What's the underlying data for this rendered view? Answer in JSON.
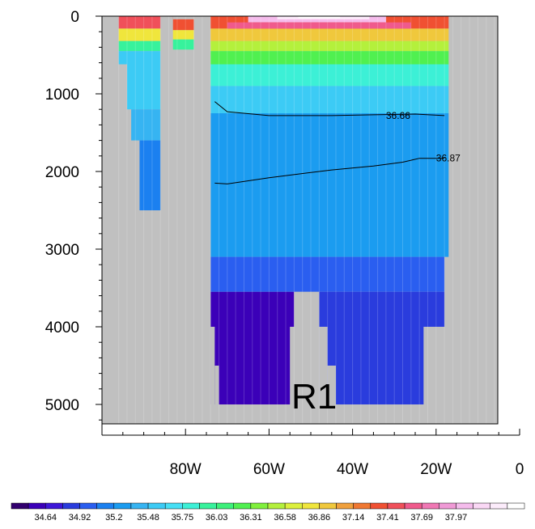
{
  "chart_data": {
    "type": "heatmap",
    "title": "",
    "xlabel": "",
    "ylabel": "",
    "panel_label": "R1",
    "x_axis": {
      "range": [
        -100,
        0
      ],
      "reversed_labels": true,
      "ticks": [
        {
          "value": -80,
          "label": "80W"
        },
        {
          "value": -60,
          "label": "60W"
        },
        {
          "value": -40,
          "label": "40W"
        },
        {
          "value": -20,
          "label": "20W"
        },
        {
          "value": 0,
          "label": "0"
        }
      ]
    },
    "y_axis": {
      "range": [
        0,
        5400
      ],
      "inverted": true,
      "ticks": [
        {
          "value": 0,
          "label": "0"
        },
        {
          "value": 1000,
          "label": "1000"
        },
        {
          "value": 2000,
          "label": "2000"
        },
        {
          "value": 3000,
          "label": "3000"
        },
        {
          "value": 4000,
          "label": "4000"
        },
        {
          "value": 5000,
          "label": "5000"
        }
      ]
    },
    "land_color": "#c0c0c0",
    "colorbar": {
      "colors": [
        "#32006e",
        "#3b00b8",
        "#3e17d8",
        "#2a3cdd",
        "#2a5ef0",
        "#1b80f0",
        "#1b9cf0",
        "#36b4f2",
        "#3ccbf5",
        "#46dff5",
        "#3cf0d6",
        "#37f29c",
        "#3cf07a",
        "#50f050",
        "#80f03c",
        "#b4f03c",
        "#dcf03c",
        "#f0e63c",
        "#f0c83c",
        "#f0a03c",
        "#f07832",
        "#f05032",
        "#f0505a",
        "#f05a8c",
        "#f078b4",
        "#f09ad6",
        "#f5bcec",
        "#fad8f5",
        "#fcecfb",
        "#ffffff"
      ],
      "labels": [
        "34.64",
        "34.92",
        "35.2",
        "35.48",
        "35.75",
        "36.03",
        "36.31",
        "36.58",
        "36.86",
        "37.14",
        "37.41",
        "37.69",
        "37.97"
      ]
    },
    "cells": [
      {
        "x0": -96,
        "x1": -86,
        "y0": 0,
        "y1": 160,
        "level": 22
      },
      {
        "x0": -96,
        "x1": -86,
        "y0": 160,
        "y1": 320,
        "level": 17
      },
      {
        "x0": -96,
        "x1": -86,
        "y0": 320,
        "y1": 450,
        "level": 11
      },
      {
        "x0": -96,
        "x1": -94,
        "y0": 450,
        "y1": 620,
        "level": 8
      },
      {
        "x0": -94,
        "x1": -86,
        "y0": 450,
        "y1": 1200,
        "level": 8
      },
      {
        "x0": -93,
        "x1": -86,
        "y0": 1200,
        "y1": 1600,
        "level": 7
      },
      {
        "x0": -91,
        "x1": -86,
        "y0": 1600,
        "y1": 2500,
        "level": 5
      },
      {
        "x0": -83,
        "x1": -78,
        "y0": 0,
        "y1": 180,
        "level": 21
      },
      {
        "x0": -83,
        "x1": -78,
        "y0": 180,
        "y1": 300,
        "level": 17
      },
      {
        "x0": -83,
        "x1": -78,
        "y0": 300,
        "y1": 430,
        "level": 11
      },
      {
        "x0": -74,
        "x1": -17,
        "y0": 0,
        "y1": 160,
        "level": 21
      },
      {
        "x0": -74,
        "x1": -17,
        "y0": 160,
        "y1": 320,
        "level": 18
      },
      {
        "x0": -74,
        "x1": -17,
        "y0": 320,
        "y1": 450,
        "level": 15
      },
      {
        "x0": -74,
        "x1": -17,
        "y0": 450,
        "y1": 620,
        "level": 13
      },
      {
        "x0": -74,
        "x1": -17,
        "y0": 620,
        "y1": 900,
        "level": 10
      },
      {
        "x0": -74,
        "x1": -17,
        "y0": 900,
        "y1": 1250,
        "level": 8
      },
      {
        "x0": -74,
        "x1": -17,
        "y0": 1250,
        "y1": 3100,
        "level": 6
      },
      {
        "x0": -74,
        "x1": -18,
        "y0": 3100,
        "y1": 3550,
        "level": 4
      },
      {
        "x0": -74,
        "x1": -54,
        "y0": 3550,
        "y1": 5000,
        "level": 1
      },
      {
        "x0": -48,
        "x1": -18,
        "y0": 3550,
        "y1": 4000,
        "level": 3
      },
      {
        "x0": -48,
        "x1": -23,
        "y0": 4000,
        "y1": 5000,
        "level": 3
      },
      {
        "x0": -65,
        "x1": -32,
        "y0": 0,
        "y1": 80,
        "level": 26
      },
      {
        "x0": -58,
        "x1": -36,
        "y0": 0,
        "y1": 40,
        "level": 28
      },
      {
        "x0": -53,
        "x1": -43,
        "y0": 0,
        "y1": 25,
        "level": 29
      },
      {
        "x0": -70,
        "x1": -26,
        "y0": 80,
        "y1": 160,
        "level": 23
      }
    ],
    "land_cutouts": [
      {
        "x0": -83,
        "x1": -78,
        "y0": 0,
        "y1": 40
      },
      {
        "x0": -76,
        "x1": -74,
        "y0": 1100,
        "y1": 5200
      },
      {
        "x0": -74,
        "x1": -73,
        "y0": 4000,
        "y1": 5200
      },
      {
        "x0": -73,
        "x1": -72,
        "y0": 4500,
        "y1": 5200
      },
      {
        "x0": -55,
        "x1": -53,
        "y0": 4000,
        "y1": 5200
      },
      {
        "x0": -54,
        "x1": -48,
        "y0": 3550,
        "y1": 5200
      },
      {
        "x0": -48,
        "x1": -46,
        "y0": 4000,
        "y1": 5200
      },
      {
        "x0": -46,
        "x1": -44,
        "y0": 4500,
        "y1": 5200
      }
    ],
    "contours": [
      {
        "label": "36.66",
        "label_at": {
          "x": -32,
          "y": 1280
        },
        "points": [
          [
            -73,
            1100
          ],
          [
            -70,
            1230
          ],
          [
            -60,
            1280
          ],
          [
            -45,
            1280
          ],
          [
            -35,
            1270
          ],
          [
            -25,
            1260
          ],
          [
            -18,
            1280
          ]
        ]
      },
      {
        "label": "36.87",
        "label_at": {
          "x": -20,
          "y": 1830
        },
        "points": [
          [
            -73,
            2150
          ],
          [
            -70,
            2160
          ],
          [
            -60,
            2080
          ],
          [
            -45,
            1980
          ],
          [
            -35,
            1930
          ],
          [
            -28,
            1880
          ],
          [
            -24,
            1830
          ],
          [
            -18,
            1830
          ]
        ]
      }
    ]
  }
}
